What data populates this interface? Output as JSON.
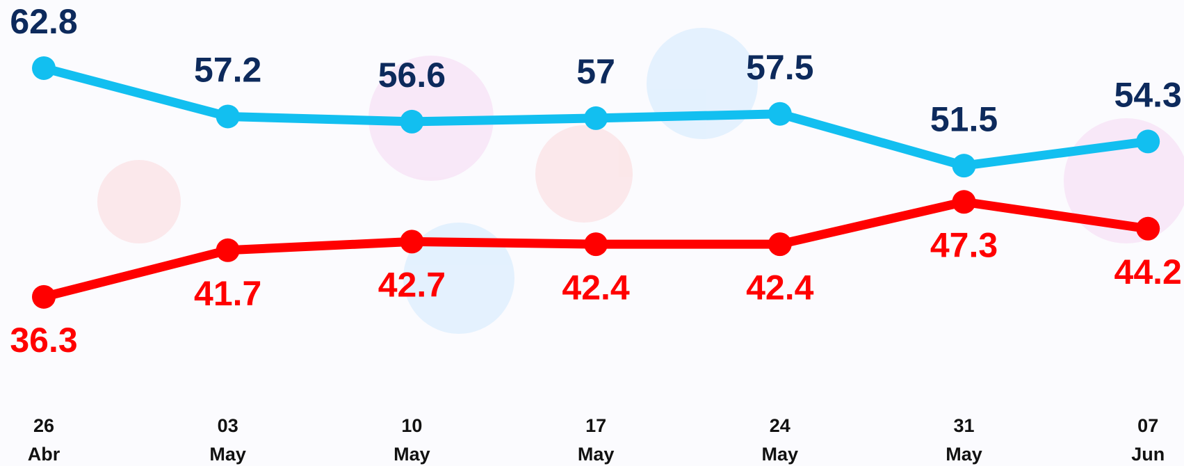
{
  "chart_data": {
    "type": "line",
    "categories": [
      [
        "26",
        "Abr"
      ],
      [
        "03",
        "May"
      ],
      [
        "10",
        "May"
      ],
      [
        "17",
        "May"
      ],
      [
        "24",
        "May"
      ],
      [
        "31",
        "May"
      ],
      [
        "07",
        "Jun"
      ]
    ],
    "series": [
      {
        "color": "#12bff0",
        "label_color": "#0d2a5c",
        "values": [
          62.8,
          57.2,
          56.6,
          57.0,
          57.5,
          51.5,
          54.3
        ]
      },
      {
        "color": "#ff0000",
        "label_color": "#ff0000",
        "values": [
          36.3,
          41.7,
          42.7,
          42.4,
          42.4,
          47.3,
          44.2
        ]
      }
    ],
    "ylim": [
      30,
      70
    ]
  }
}
